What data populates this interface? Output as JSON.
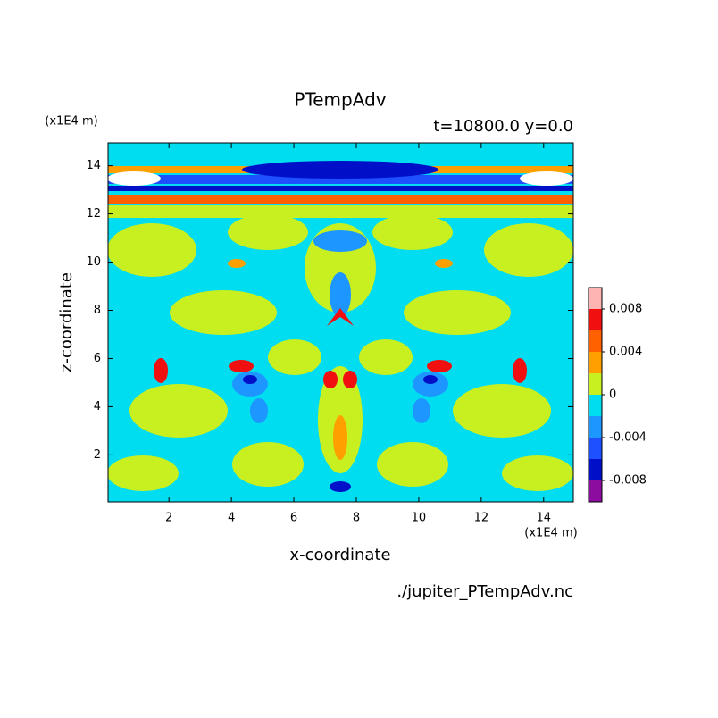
{
  "chart_data": {
    "type": "contour",
    "title": "PTempAdv",
    "subtitle": "t=10800.0 y=0.0",
    "x_label": "x-coordinate",
    "y_label": "z-coordinate",
    "x_unit": "(x1E4 m)",
    "y_unit": "(x1E4 m)",
    "source": "./jupiter_PTempAdv.nc",
    "xlim": [
      0.05,
      14.95
    ],
    "ylim": [
      0.05,
      14.95
    ],
    "xticks": [
      2,
      4,
      6,
      8,
      10,
      12,
      14
    ],
    "yticks": [
      2,
      4,
      6,
      8,
      10,
      12,
      14
    ],
    "colorbar": {
      "levels": [
        -0.01,
        -0.008,
        -0.006,
        -0.004,
        -0.002,
        0,
        0.002,
        0.004,
        0.006,
        0.008,
        0.01
      ],
      "colors": [
        "#8c0ca0",
        "#0010c8",
        "#1e50ff",
        "#1e96ff",
        "#00dcf0",
        "#c8f020",
        "#ffa000",
        "#ff6000",
        "#f01010",
        "#ffb4b4"
      ],
      "ticks": [
        -0.008,
        -0.004,
        0,
        0.004,
        0.008
      ]
    }
  }
}
